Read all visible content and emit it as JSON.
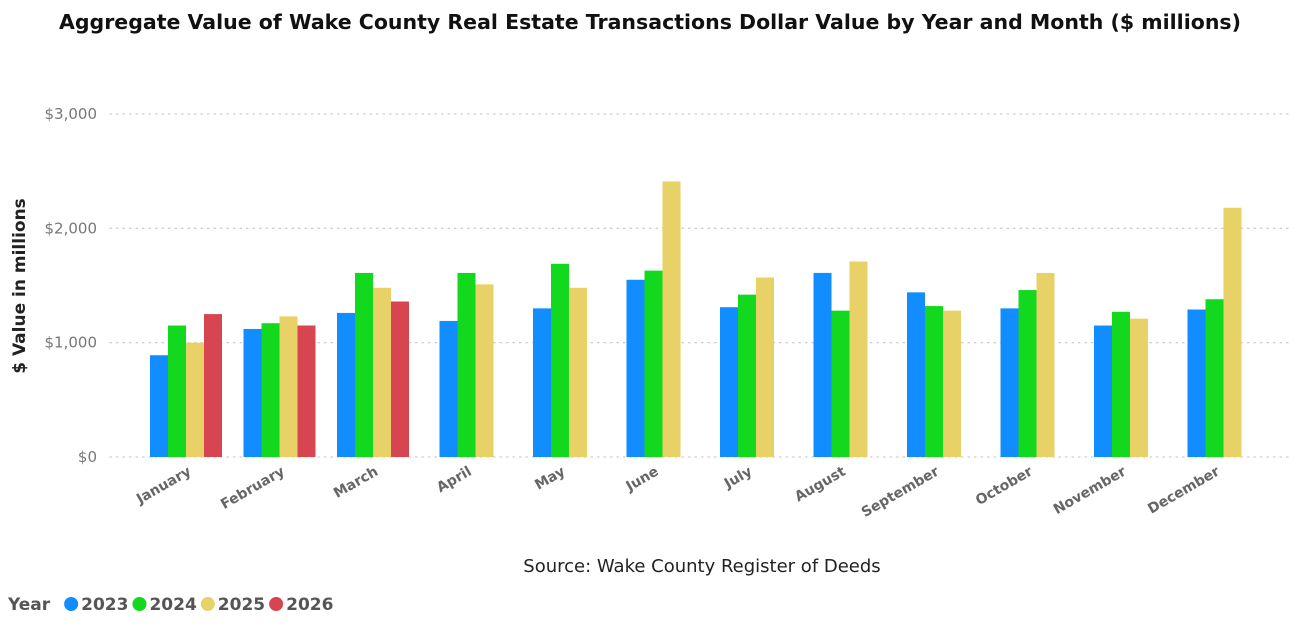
{
  "chart_data": {
    "type": "bar",
    "title": "Aggregate Value of Wake County Real Estate Transactions Dollar Value by Year and Month ($ millions)",
    "xlabel": "Source: Wake County Register of Deeds",
    "ylabel": "$ Value in millions",
    "ylim": [
      0,
      3000
    ],
    "yticks": [
      0,
      1000,
      2000,
      3000
    ],
    "ytick_labels": [
      "$0",
      "$1,000",
      "$2,000",
      "$3,000"
    ],
    "grid": true,
    "legend_title": "Year",
    "legend_position": "bottom-left",
    "categories": [
      "January",
      "February",
      "March",
      "April",
      "May",
      "June",
      "July",
      "August",
      "September",
      "October",
      "November",
      "December"
    ],
    "series": [
      {
        "name": "2023",
        "color": "#118DFF",
        "values": [
          890,
          1120,
          1260,
          1190,
          1300,
          1550,
          1310,
          1610,
          1440,
          1300,
          1150,
          1290
        ]
      },
      {
        "name": "2024",
        "color": "#12D81E",
        "values": [
          1150,
          1170,
          1610,
          1610,
          1690,
          1630,
          1420,
          1280,
          1320,
          1460,
          1270,
          1380
        ]
      },
      {
        "name": "2025",
        "color": "#E8D166",
        "values": [
          1000,
          1230,
          1480,
          1510,
          1480,
          2410,
          1570,
          1710,
          1280,
          1610,
          1210,
          2180
        ]
      },
      {
        "name": "2026",
        "color": "#D64550",
        "values": [
          1250,
          1150,
          1360,
          null,
          null,
          null,
          null,
          null,
          null,
          null,
          null,
          null
        ]
      }
    ]
  }
}
